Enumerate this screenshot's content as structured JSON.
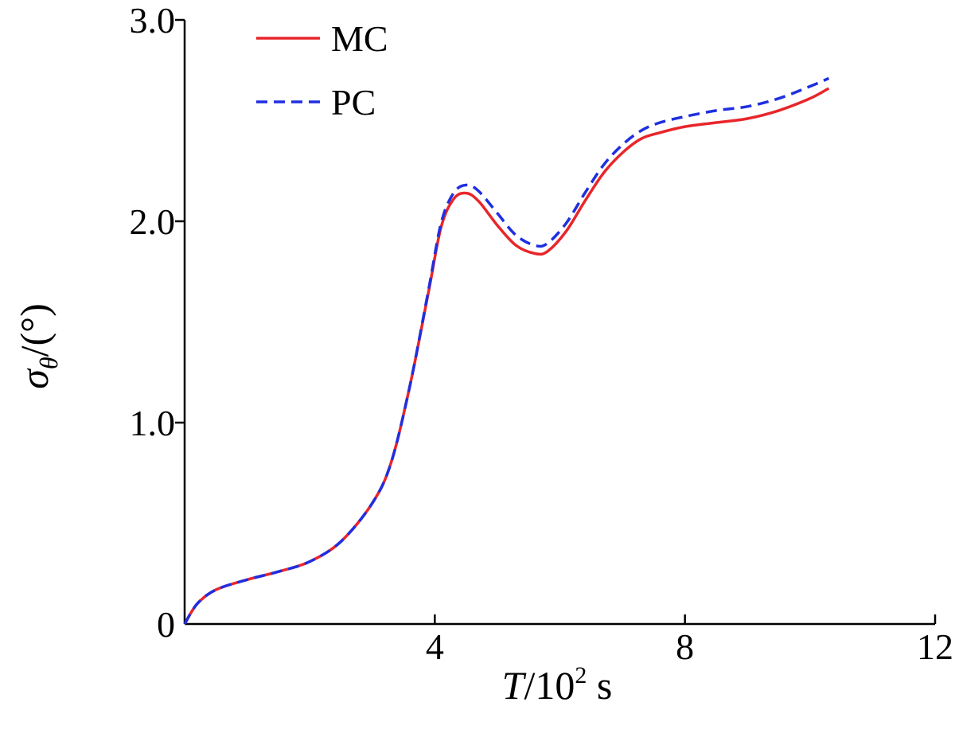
{
  "chart_data": {
    "type": "line",
    "xlabel": {
      "var": "T",
      "sep": "/",
      "base": "10",
      "exp": "2",
      "unit": " s"
    },
    "ylabel": {
      "var": "σ",
      "sub": "θ",
      "sep": "/",
      "unit": "(°)"
    },
    "xlim": [
      0,
      12
    ],
    "ylim": [
      0,
      3.0
    ],
    "x_ticks": [
      {
        "value": 4,
        "label": "4"
      },
      {
        "value": 8,
        "label": "8"
      },
      {
        "value": 12,
        "label": "12"
      }
    ],
    "y_ticks": [
      {
        "value": 0,
        "label": "0"
      },
      {
        "value": 1.0,
        "label": "1.0"
      },
      {
        "value": 2.0,
        "label": "2.0"
      },
      {
        "value": 3.0,
        "label": "3.0"
      }
    ],
    "grid": false,
    "legend_position": "top-left",
    "series": [
      {
        "name": "MC",
        "color": "#e8262b",
        "style": "solid",
        "x": [
          0,
          0.2,
          0.5,
          1.0,
          1.5,
          2.0,
          2.5,
          3.0,
          3.3,
          3.6,
          3.9,
          4.1,
          4.3,
          4.5,
          4.7,
          5.0,
          5.3,
          5.6,
          5.8,
          6.1,
          6.4,
          6.7,
          7.0,
          7.3,
          7.6,
          8.0,
          8.5,
          9.0,
          9.5,
          10.0,
          10.3
        ],
        "y": [
          0.0,
          0.1,
          0.17,
          0.22,
          0.26,
          0.31,
          0.41,
          0.6,
          0.8,
          1.18,
          1.65,
          1.97,
          2.11,
          2.14,
          2.1,
          1.98,
          1.88,
          1.84,
          1.85,
          1.95,
          2.1,
          2.24,
          2.34,
          2.41,
          2.44,
          2.47,
          2.49,
          2.51,
          2.55,
          2.61,
          2.66
        ]
      },
      {
        "name": "PC",
        "color": "#1f2fe0",
        "style": "dashed",
        "x": [
          0,
          0.2,
          0.5,
          1.0,
          1.5,
          2.0,
          2.5,
          3.0,
          3.3,
          3.6,
          3.9,
          4.1,
          4.3,
          4.5,
          4.7,
          5.0,
          5.3,
          5.6,
          5.8,
          6.1,
          6.4,
          6.7,
          7.0,
          7.3,
          7.6,
          8.0,
          8.5,
          9.0,
          9.5,
          10.0,
          10.3
        ],
        "y": [
          0.0,
          0.1,
          0.17,
          0.22,
          0.26,
          0.31,
          0.41,
          0.6,
          0.8,
          1.18,
          1.66,
          1.99,
          2.14,
          2.18,
          2.15,
          2.04,
          1.93,
          1.88,
          1.89,
          1.99,
          2.14,
          2.28,
          2.38,
          2.45,
          2.49,
          2.52,
          2.55,
          2.57,
          2.61,
          2.67,
          2.71
        ]
      }
    ]
  }
}
